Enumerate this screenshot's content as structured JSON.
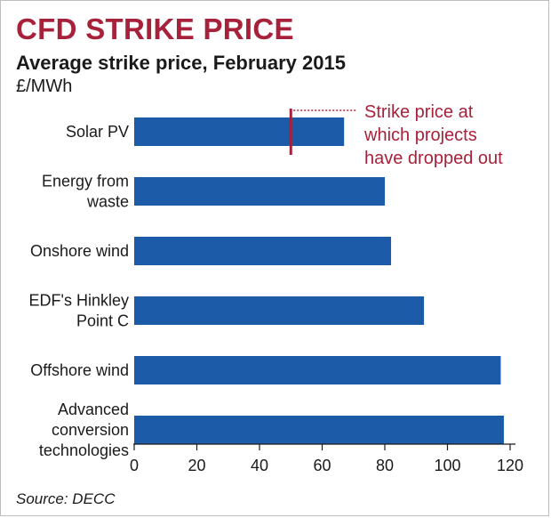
{
  "header": {
    "title": "CFD STRIKE PRICE",
    "subtitle": "Average strike price, February 2015",
    "unit": "£/MWh"
  },
  "source": "Source: DECC",
  "colors": {
    "bar": "#1c5ba8",
    "accent": "#a8213a",
    "text": "#1a1a1a"
  },
  "chart_data": {
    "type": "bar",
    "orientation": "horizontal",
    "title": "CFD STRIKE PRICE",
    "subtitle": "Average strike price, February 2015",
    "xlabel": "",
    "ylabel": "£/MWh",
    "xlim": [
      0,
      120
    ],
    "xticks": [
      0,
      20,
      40,
      60,
      80,
      100,
      120
    ],
    "categories": [
      [
        "Solar PV"
      ],
      [
        "Energy from",
        "waste"
      ],
      [
        "Onshore wind"
      ],
      [
        "EDF's Hinkley",
        "Point C"
      ],
      [
        "Offshore wind"
      ],
      [
        "Advanced",
        "conversion",
        "technologies"
      ]
    ],
    "values": [
      67,
      80,
      82,
      92.5,
      117,
      118
    ],
    "reference": {
      "value": 50,
      "category_index": 0,
      "label": [
        "Strike price at",
        "which projects",
        "have dropped out"
      ]
    }
  }
}
